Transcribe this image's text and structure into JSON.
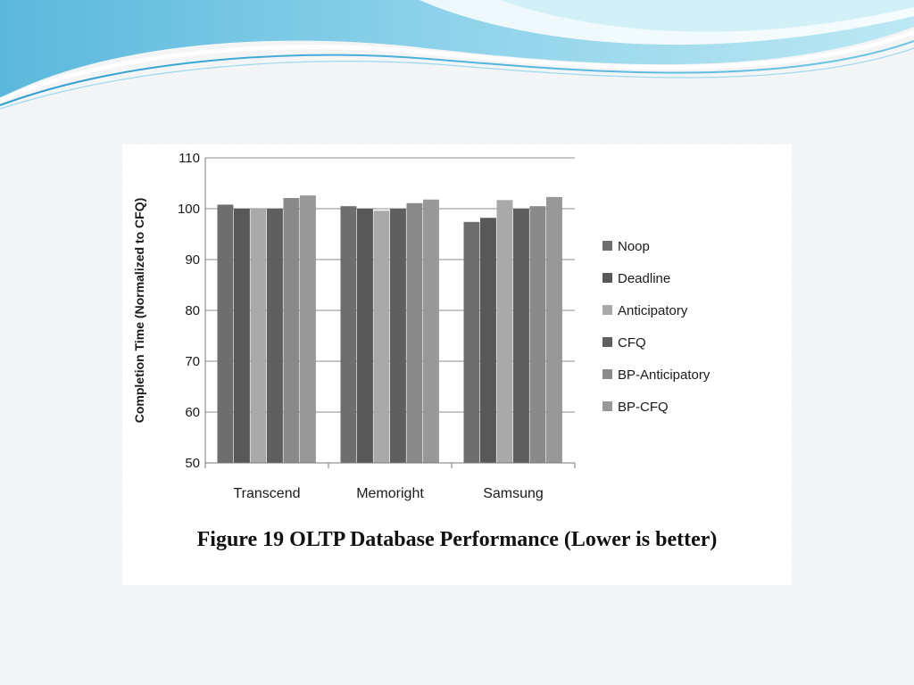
{
  "caption": "Figure 19 OLTP Database Performance (Lower is better)",
  "chart_data": {
    "type": "bar",
    "ylabel": "Completion Time (Normalized to CFQ)",
    "ylim": [
      50,
      110
    ],
    "yticks": [
      50,
      60,
      70,
      80,
      90,
      100,
      110
    ],
    "categories": [
      "Transcend",
      "Memoright",
      "Samsung"
    ],
    "grid": true,
    "legend_position": "right",
    "series": [
      {
        "name": "Noop",
        "color": "#6e6e6e",
        "values": [
          100.8,
          100.5,
          97.4
        ]
      },
      {
        "name": "Deadline",
        "color": "#585858",
        "values": [
          100.0,
          100.0,
          98.2
        ]
      },
      {
        "name": "Anticipatory",
        "color": "#a9a9a9",
        "values": [
          100.0,
          99.6,
          101.7
        ]
      },
      {
        "name": "CFQ",
        "color": "#5f5f5f",
        "values": [
          100.0,
          100.0,
          100.0
        ]
      },
      {
        "name": "BP-Anticipatory",
        "color": "#8a8a8a",
        "values": [
          102.1,
          101.1,
          100.5
        ]
      },
      {
        "name": "BP-CFQ",
        "color": "#989898",
        "values": [
          102.6,
          101.8,
          102.3
        ]
      }
    ]
  }
}
